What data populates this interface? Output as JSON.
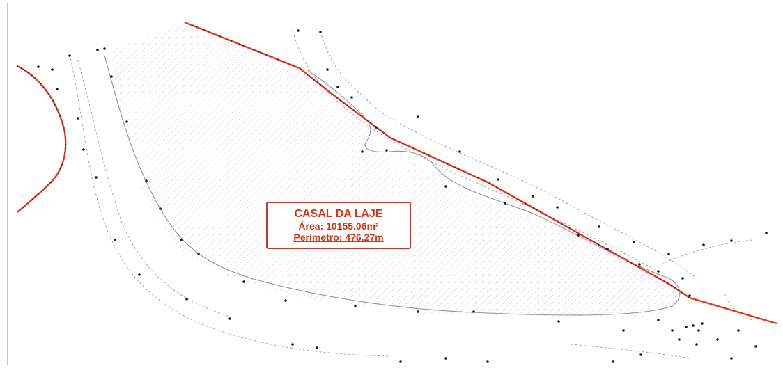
{
  "parcel": {
    "name": "CASAL DA LAJE",
    "area_text": "Área: 10155.06m²",
    "perimeter_text": "Perímetro: 476.27m"
  },
  "colors": {
    "boundary": "#e8361e",
    "contour": "#8a93a8",
    "hatch": "#b9bcc6",
    "marker": "#1a1a1a",
    "label": "#d8341c"
  },
  "icons": [
    "survey-point-marker"
  ]
}
